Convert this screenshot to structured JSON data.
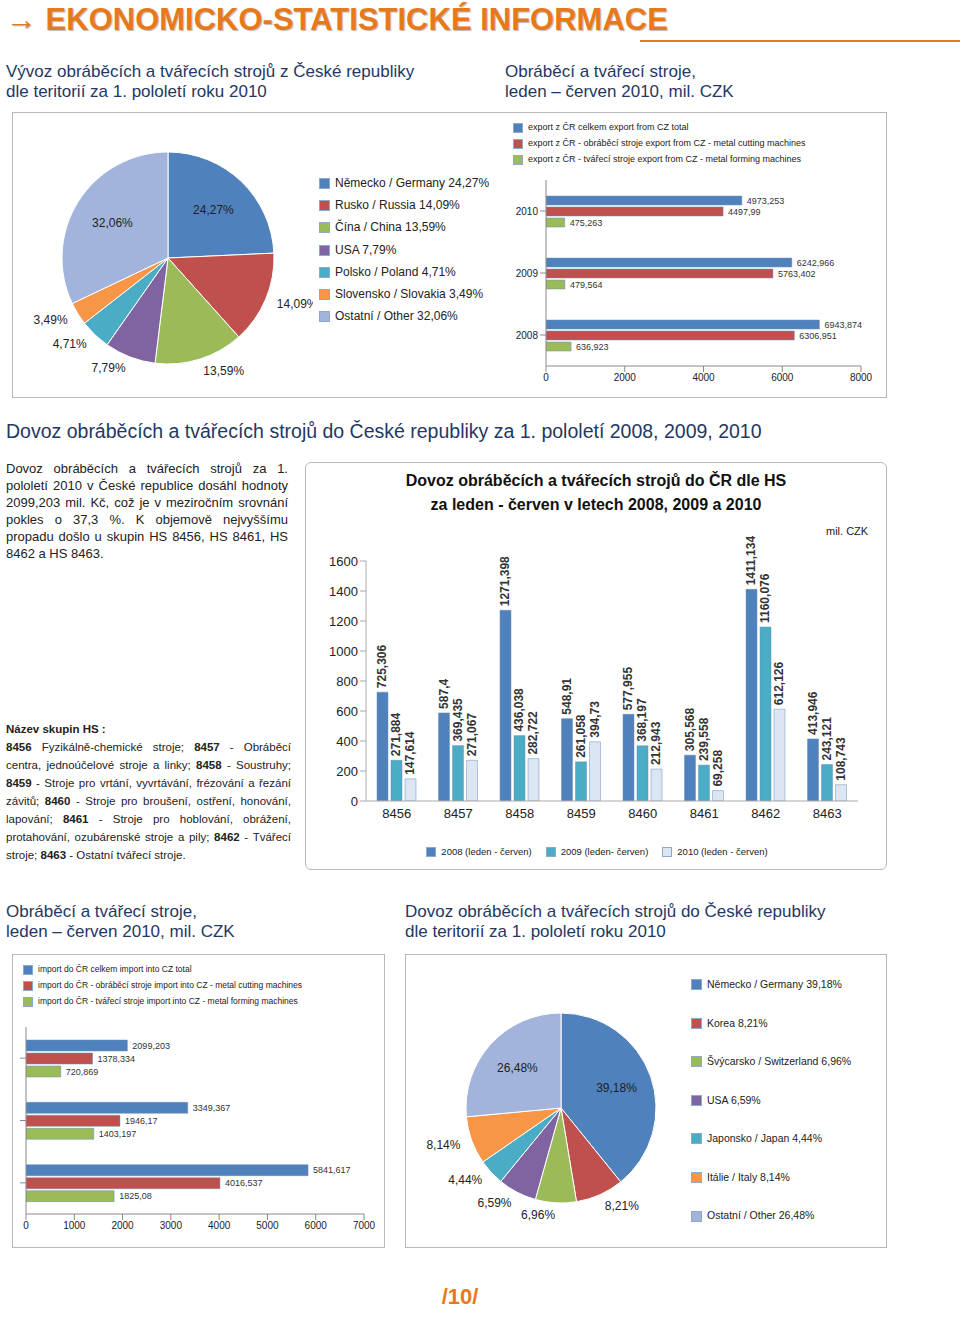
{
  "header": {
    "title": "→ EKONOMICKO-STATISTICKÉ INFORMACE"
  },
  "section_title": "Dovoz obráběcích a tvářecích strojů do České republiky za 1. pololetí 2008, 2009, 2010",
  "intro_text": "Dovoz obráběcích a tvářecích strojů za 1. pololetí 2010 v České republice dosáhl hodnoty 2099,203 mil. Kč, což je v meziročním srovnání pokles o 37,3 %. K objemově nejvyššímu propadu došlo u skupin HS 8456, HS 8461, HS 8462 a HS 8463.",
  "hs_list": {
    "title": "Název skupin HS :",
    "items": [
      {
        "code": "8456",
        "text": "Fyzikálně-chemické stroje;"
      },
      {
        "code": "8457",
        "text": "- Obráběcí centra, jednoúčelové stroje a linky;"
      },
      {
        "code": "8458",
        "text": "- Soustruhy;"
      },
      {
        "code": "8459",
        "text": "- Stroje pro vrtání, vyvrtávání, frézování a řezání závitů;"
      },
      {
        "code": "8460",
        "text": "- Stroje pro broušení, ostření, honování, lapování;"
      },
      {
        "code": "8461",
        "text": "- Stroje pro hoblování, obrážení, protahování, ozubárenské stroje a pily;"
      },
      {
        "code": "8462",
        "text": "- Tvářecí stroje;"
      },
      {
        "code": "8463",
        "text": "- Ostatní tvářecí stroje."
      }
    ]
  },
  "page_number": "/10/",
  "chart_data": [
    {
      "type": "pie",
      "title": "Vývoz obráběcích a tvářecích strojů z České republiky\ndle teritorií za 1. pololetí roku 2010",
      "categories": [
        "Německo / Germany 24,27%",
        "Rusko / Russia 14,09%",
        "Čína / China 13,59%",
        "USA 7,79%",
        "Polsko / Poland 4,71%",
        "Slovensko / Slovakia 3,49%",
        "Ostatní / Other 32,06%"
      ],
      "values": [
        24.27,
        14.09,
        13.59,
        7.79,
        4.71,
        3.49,
        32.06
      ],
      "value_labels": [
        "24,27%",
        "14,09%",
        "13,59%",
        "7,79%",
        "4,71%",
        "3,49%",
        "32,06%"
      ],
      "colors": [
        "#4f81bd",
        "#c0504d",
        "#9bbb59",
        "#8064a2",
        "#4bacc6",
        "#f79646",
        "#a2b4dc"
      ],
      "data_labels": true,
      "legend": "right"
    },
    {
      "type": "bar",
      "orientation": "horizontal",
      "title": "Obráběcí a tvářecí stroje,\nleden – červen 2010, mil. CZK",
      "categories": [
        "2010",
        "2009",
        "2008"
      ],
      "series": [
        {
          "name": "export z ČR celkem export from CZ total",
          "color": "#4f81bd",
          "values": [
            4973.253,
            6242.966,
            6943.874
          ],
          "value_labels": [
            "4973,253",
            "6242,966",
            "6943,874"
          ]
        },
        {
          "name": "export z ČR - obráběcí stroje export from CZ - metal cutting machines",
          "color": "#c0504d",
          "values": [
            4497.99,
            5763.402,
            6306.951
          ],
          "value_labels": [
            "4497,99",
            "5763,402",
            "6306,951"
          ]
        },
        {
          "name": "export z ČR - tvářecí stroje export from CZ - metal forming machines",
          "color": "#9bbb59",
          "values": [
            475.263,
            479.564,
            636.923
          ],
          "value_labels": [
            "475,263",
            "479,564",
            "636,923"
          ]
        }
      ],
      "xlim": [
        0,
        8000
      ],
      "xticks": [
        0,
        2000,
        4000,
        6000,
        8000
      ],
      "data_labels": true,
      "legend": "top"
    },
    {
      "type": "bar",
      "title": "Dovoz obráběcích a tvářecích strojů do ČR dle HS\nza leden - červen v letech 2008, 2009 a 2010",
      "annotation": "mil. CZK",
      "categories": [
        "8456",
        "8457",
        "8458",
        "8459",
        "8460",
        "8461",
        "8462",
        "8463"
      ],
      "series": [
        {
          "name": "2008 (leden - červen)",
          "color": "#4f81bd",
          "values": [
            725.306,
            587.4,
            1271.398,
            548.91,
            577.955,
            305.568,
            1411.134,
            413.946
          ],
          "value_labels": [
            "725,306",
            "587,4",
            "1271,398",
            "548,91",
            "577,955",
            "305,568",
            "1411,134",
            "413,946"
          ]
        },
        {
          "name": "2009 (leden- červen)",
          "color": "#4bacc6",
          "values": [
            271.884,
            369.435,
            436.038,
            261.058,
            368.197,
            239.558,
            1160.076,
            243.121
          ],
          "value_labels": [
            "271,884",
            "369,435",
            "436,038",
            "261,058",
            "368,197",
            "239,558",
            "1160,076",
            "243,121"
          ]
        },
        {
          "name": "2010 (leden - červen)",
          "color": "#dce6f2",
          "values": [
            147.614,
            271.067,
            282.722,
            394.73,
            212.943,
            69.258,
            612.126,
            108.743
          ],
          "value_labels": [
            "147,614",
            "271,067",
            "282,722",
            "394,73",
            "212,943",
            "69,258",
            "612,126",
            "108,743"
          ]
        }
      ],
      "ylim": [
        0,
        1600
      ],
      "yticks": [
        0,
        200,
        400,
        600,
        800,
        1000,
        1200,
        1400,
        1600
      ],
      "grid": false,
      "data_labels": true,
      "legend": "bottom"
    },
    {
      "type": "bar",
      "orientation": "horizontal",
      "title": "Obráběcí a tvářecí stroje,\nleden – červen 2010, mil. CZK",
      "categories": [
        null,
        null,
        null
      ],
      "series": [
        {
          "name": "import do ČR celkem import into CZ total",
          "color": "#4f81bd",
          "values": [
            2099.203,
            3349.367,
            5841.617
          ],
          "value_labels": [
            "2099,203",
            "3349,367",
            "5841,617"
          ]
        },
        {
          "name": "import do ČR - obráběcí stroje import into CZ - metal cutting machines",
          "color": "#c0504d",
          "values": [
            1378.334,
            1946.17,
            4016.537
          ],
          "value_labels": [
            "1378,334",
            "1946,17",
            "4016,537"
          ]
        },
        {
          "name": "import do ČR - tvářecí stroje import into CZ - metal forming machines",
          "color": "#9bbb59",
          "values": [
            720.869,
            1403.197,
            1825.08
          ],
          "value_labels": [
            "720,869",
            "1403,197",
            "1825,08"
          ]
        }
      ],
      "xlim": [
        0,
        7000
      ],
      "xticks": [
        0,
        1000,
        2000,
        3000,
        4000,
        5000,
        6000,
        7000
      ],
      "data_labels": true,
      "legend": "top"
    },
    {
      "type": "pie",
      "title": "Dovoz obráběcích a tvářecích strojů do České republiky\ndle teritorií za 1. pololetí roku 2010",
      "categories": [
        "Německo / Germany 39,18%",
        "Korea 8,21%",
        "Švýcarsko / Switzerland 6,96%",
        "USA 6,59%",
        "Japonsko / Japan 4,44%",
        "Itálie / Italy 8,14%",
        "Ostatní / Other 26,48%"
      ],
      "values": [
        39.18,
        8.21,
        6.96,
        6.59,
        4.44,
        8.14,
        26.48
      ],
      "value_labels": [
        "39,18%",
        "8,21%",
        "6,96%",
        "6,59%",
        "4,44%",
        "8,14%",
        "26,48%"
      ],
      "colors": [
        "#4f81bd",
        "#c0504d",
        "#9bbb59",
        "#8064a2",
        "#4bacc6",
        "#f79646",
        "#a2b4dc"
      ],
      "data_labels": true,
      "legend": "right"
    }
  ]
}
